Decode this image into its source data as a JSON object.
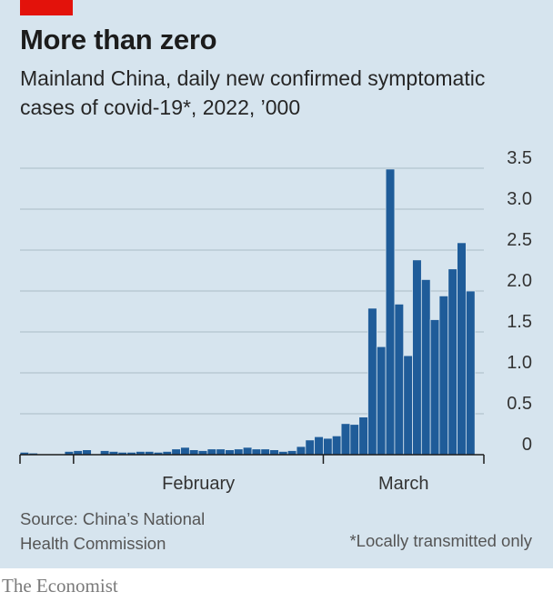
{
  "header": {
    "title": "More than zero",
    "subtitle": "Mainland China, daily new confirmed symptomatic cases of covid-19*, 2022, ’000"
  },
  "footer": {
    "source": "Source: China’s National Health Commission",
    "footnote": "*Locally transmitted only",
    "brand": "The Economist"
  },
  "colors": {
    "accent": "#e3120b",
    "bar": "#1f5c99",
    "background": "#d6e4ee"
  },
  "chart_data": {
    "type": "bar",
    "title": "More than zero",
    "ylabel": "",
    "xlabel": "",
    "ylim": [
      0,
      3.5
    ],
    "yticks": [
      0,
      0.5,
      1.0,
      1.5,
      2.0,
      2.5,
      3.0,
      3.5
    ],
    "ytick_labels": [
      "0",
      "0.5",
      "1.0",
      "1.5",
      "2.0",
      "2.5",
      "3.0",
      "3.5"
    ],
    "x_month_labels": [
      "February",
      "March"
    ],
    "grid": true,
    "y_axis_side": "right",
    "start_date": "2022-01-26",
    "dates": [
      "2022-01-26",
      "2022-01-27",
      "2022-01-28",
      "2022-01-29",
      "2022-01-30",
      "2022-01-31",
      "2022-02-01",
      "2022-02-02",
      "2022-02-03",
      "2022-02-04",
      "2022-02-05",
      "2022-02-06",
      "2022-02-07",
      "2022-02-08",
      "2022-02-09",
      "2022-02-10",
      "2022-02-11",
      "2022-02-12",
      "2022-02-13",
      "2022-02-14",
      "2022-02-15",
      "2022-02-16",
      "2022-02-17",
      "2022-02-18",
      "2022-02-19",
      "2022-02-20",
      "2022-02-21",
      "2022-02-22",
      "2022-02-23",
      "2022-02-24",
      "2022-02-25",
      "2022-02-26",
      "2022-02-27",
      "2022-02-28",
      "2022-03-01",
      "2022-03-02",
      "2022-03-03",
      "2022-03-04",
      "2022-03-05",
      "2022-03-06",
      "2022-03-07",
      "2022-03-08",
      "2022-03-09",
      "2022-03-10",
      "2022-03-11",
      "2022-03-12",
      "2022-03-13",
      "2022-03-14",
      "2022-03-15",
      "2022-03-16",
      "2022-03-17",
      "2022-03-18"
    ],
    "values": [
      0.03,
      0.02,
      0.01,
      0.01,
      0.01,
      0.04,
      0.05,
      0.06,
      0.01,
      0.05,
      0.04,
      0.03,
      0.03,
      0.04,
      0.04,
      0.03,
      0.04,
      0.07,
      0.09,
      0.06,
      0.05,
      0.07,
      0.07,
      0.06,
      0.07,
      0.09,
      0.07,
      0.07,
      0.06,
      0.04,
      0.05,
      0.1,
      0.18,
      0.22,
      0.2,
      0.23,
      0.38,
      0.37,
      0.46,
      1.79,
      1.32,
      3.49,
      1.84,
      1.21,
      2.38,
      2.14,
      1.65,
      1.94,
      2.27,
      2.59,
      2.0,
      0
    ]
  }
}
